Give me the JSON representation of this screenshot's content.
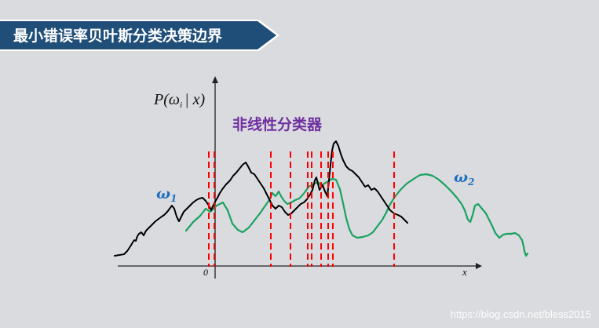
{
  "title": "最小错误率贝叶斯分类决策边界",
  "diagram": {
    "y_axis_label": "P(ω_i | x)",
    "y_axis_label_parts": {
      "P": "P(",
      "omega": "ω",
      "sub": "i",
      "rest": "| x)"
    },
    "x_axis_label": "x",
    "origin_label": "0",
    "subtitle": "非线性分类器",
    "class1_label": {
      "omega": "ω",
      "sub": "1"
    },
    "class2_label": {
      "omega": "ω",
      "sub": "2"
    },
    "colors": {
      "class1_curve": "#000000",
      "class2_curve": "#1aa260",
      "boundary_lines": "#ff0000",
      "subtitle": "#7030a0",
      "class_labels": "#1f6fc0",
      "banner": "#1f4e79"
    }
  },
  "watermark": "https://blog.csdn.net/bless2015"
}
